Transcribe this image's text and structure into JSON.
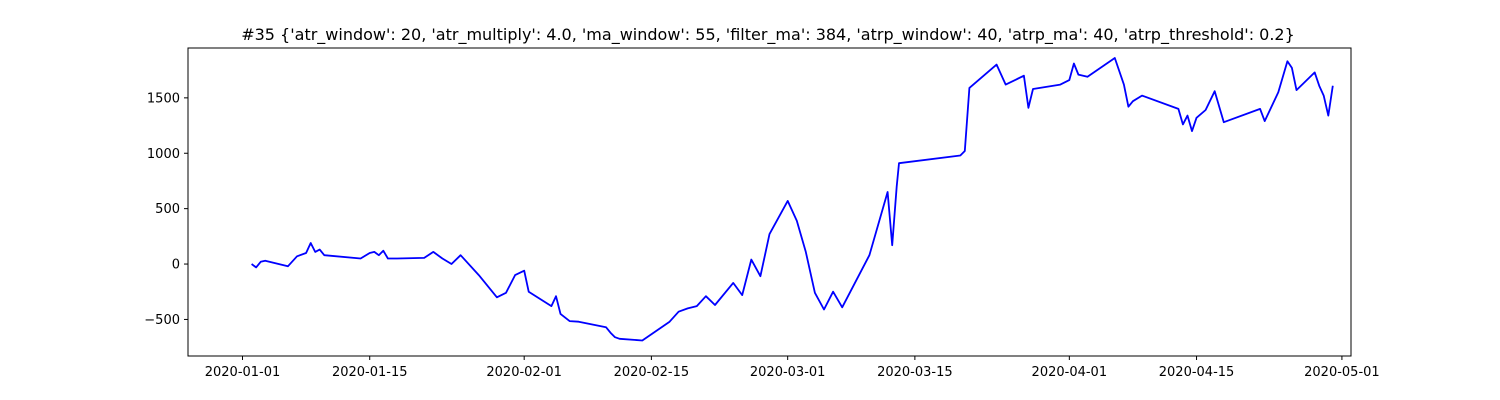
{
  "chart_data": {
    "type": "line",
    "title": "#35 {'atr_window': 20, 'atr_multiply': 4.0, 'ma_window': 55, 'filter_ma': 384, 'atrp_window': 40, 'atrp_ma': 40, 'atrp_threshold': 0.2}",
    "xlabel": "",
    "ylabel": "",
    "x_is_date": true,
    "xlim": [
      "2019-12-26",
      "2020-05-02"
    ],
    "ylim": [
      -830,
      1950
    ],
    "x_ticks": [
      "2020-01-01",
      "2020-01-15",
      "2020-02-01",
      "2020-02-15",
      "2020-03-01",
      "2020-03-15",
      "2020-04-01",
      "2020-04-15",
      "2020-05-01"
    ],
    "y_ticks": [
      -500,
      0,
      500,
      1000,
      1500
    ],
    "grid": false,
    "colors": {
      "line": "#0000ff",
      "axis": "#000000",
      "background": "#ffffff"
    },
    "series": [
      {
        "x": [
          "2020-01-02",
          "2020-01-02 12:00",
          "2020-01-03",
          "2020-01-03 12:00",
          "2020-01-06",
          "2020-01-07",
          "2020-01-08",
          "2020-01-08 12:00",
          "2020-01-09",
          "2020-01-09 12:00",
          "2020-01-10",
          "2020-01-14",
          "2020-01-15",
          "2020-01-15 12:00",
          "2020-01-16",
          "2020-01-16 12:00",
          "2020-01-17",
          "2020-01-18",
          "2020-01-21",
          "2020-01-22",
          "2020-01-23",
          "2020-01-24",
          "2020-01-25",
          "2020-01-27",
          "2020-01-29",
          "2020-01-30",
          "2020-01-31",
          "2020-02-01",
          "2020-02-01 12:00",
          "2020-02-04",
          "2020-02-04 12:00",
          "2020-02-05",
          "2020-02-06",
          "2020-02-07",
          "2020-02-10",
          "2020-02-10 12:00",
          "2020-02-11",
          "2020-02-11 12:00",
          "2020-02-14",
          "2020-02-17",
          "2020-02-18",
          "2020-02-19",
          "2020-02-20",
          "2020-02-21",
          "2020-02-22",
          "2020-02-24",
          "2020-02-25",
          "2020-02-26",
          "2020-02-27",
          "2020-02-28",
          "2020-03-01",
          "2020-03-02",
          "2020-03-03",
          "2020-03-04",
          "2020-03-05",
          "2020-03-06",
          "2020-03-07",
          "2020-03-10",
          "2020-03-12",
          "2020-03-12 12:00",
          "2020-03-13",
          "2020-03-13 06:00",
          "2020-03-20",
          "2020-03-20 12:00",
          "2020-03-21",
          "2020-03-24",
          "2020-03-25",
          "2020-03-27",
          "2020-03-27 12:00",
          "2020-03-28",
          "2020-03-31",
          "2020-04-01",
          "2020-04-01 12:00",
          "2020-04-02",
          "2020-04-03",
          "2020-04-06",
          "2020-04-07",
          "2020-04-07 12:00",
          "2020-04-08",
          "2020-04-09",
          "2020-04-13",
          "2020-04-13 12:00",
          "2020-04-14",
          "2020-04-14 12:00",
          "2020-04-15",
          "2020-04-16",
          "2020-04-17",
          "2020-04-18",
          "2020-04-22",
          "2020-04-22 12:00",
          "2020-04-24",
          "2020-04-25",
          "2020-04-25 12:00",
          "2020-04-26",
          "2020-04-28",
          "2020-04-28 12:00",
          "2020-04-29",
          "2020-04-29 12:00",
          "2020-04-30"
        ],
        "values": [
          0,
          -30,
          20,
          30,
          -20,
          70,
          100,
          190,
          110,
          130,
          80,
          50,
          100,
          110,
          80,
          120,
          50,
          50,
          55,
          110,
          50,
          0,
          80,
          -100,
          -300,
          -260,
          -100,
          -60,
          -250,
          -380,
          -290,
          -450,
          -515,
          -520,
          -570,
          -620,
          -660,
          -675,
          -690,
          -520,
          -430,
          -400,
          -380,
          -290,
          -370,
          -170,
          -280,
          40,
          -110,
          270,
          570,
          390,
          110,
          -260,
          -410,
          -250,
          -390,
          80,
          650,
          170,
          700,
          910,
          980,
          1020,
          1590,
          1800,
          1620,
          1700,
          1410,
          1580,
          1620,
          1660,
          1810,
          1710,
          1690,
          1860,
          1620,
          1420,
          1470,
          1520,
          1400,
          1260,
          1340,
          1200,
          1320,
          1390,
          1560,
          1280,
          1400,
          1290,
          1550,
          1830,
          1770,
          1570,
          1730,
          1610,
          1520,
          1340,
          1610
        ]
      }
    ]
  }
}
